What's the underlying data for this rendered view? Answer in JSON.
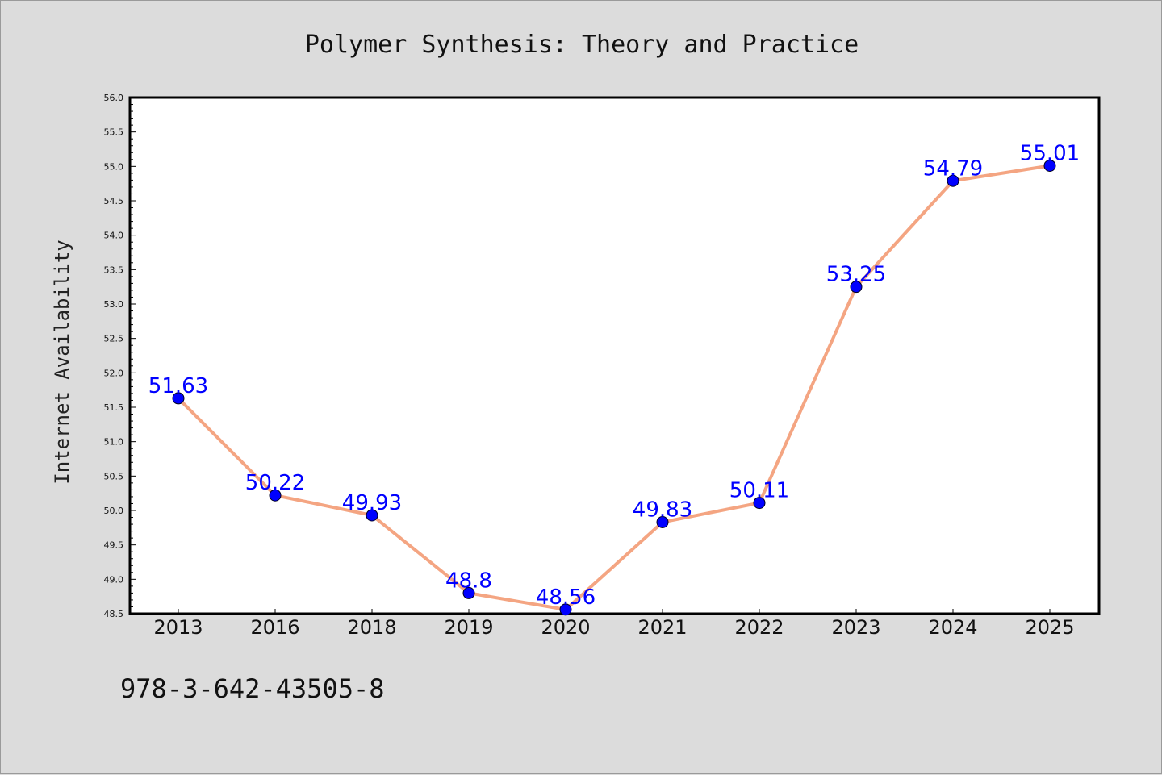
{
  "chart_data": {
    "type": "line",
    "title": "Polymer Synthesis: Theory and Practice",
    "ylabel": "Internet Availability",
    "xlabel": "",
    "categories": [
      "2013",
      "2016",
      "2018",
      "2019",
      "2020",
      "2021",
      "2022",
      "2023",
      "2024",
      "2025"
    ],
    "values": [
      51.63,
      50.22,
      49.93,
      48.8,
      48.56,
      49.83,
      50.11,
      53.25,
      54.79,
      55.01
    ],
    "data_labels": [
      "51.63",
      "50.22",
      "49.93",
      "48.8",
      "48.56",
      "49.83",
      "50.11",
      "53.25",
      "54.79",
      "55.01"
    ],
    "ylim": [
      48.5,
      56.0
    ],
    "yticks": [
      "48.5",
      "49.0",
      "49.5",
      "50.0",
      "50.5",
      "51.0",
      "51.5",
      "52.0",
      "52.5",
      "53.0",
      "53.5",
      "54.0",
      "54.5",
      "55.0",
      "55.5",
      "56.0"
    ],
    "grid": false,
    "line_color": "#f4a582",
    "marker_color": "#0000ff",
    "label_color": "#0000ff",
    "background": "#dcdcdc",
    "plot_background": "#ffffff"
  },
  "footer": {
    "isbn": "978-3-642-43505-8"
  }
}
